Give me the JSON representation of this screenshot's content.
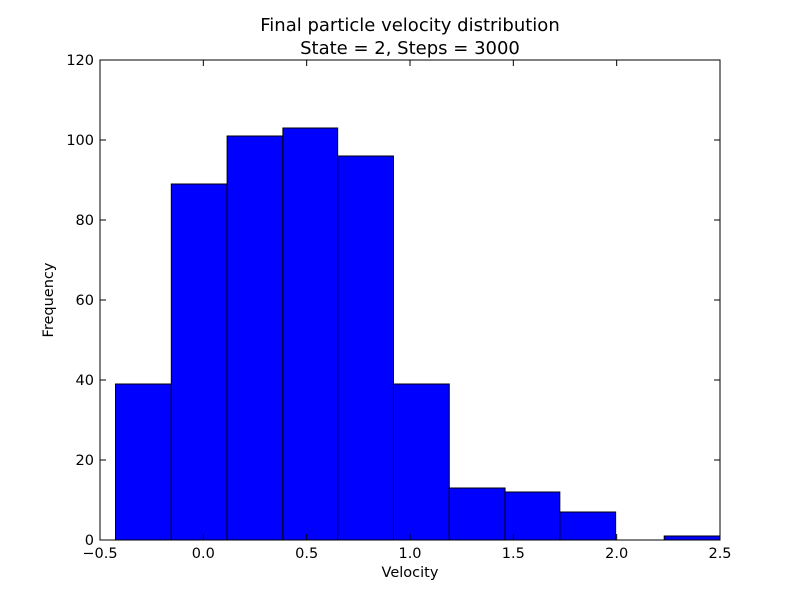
{
  "chart_data": {
    "type": "bar",
    "title": "Final particle velocity distribution",
    "subtitle": "State = 2, Steps = 3000",
    "xlabel": "Velocity",
    "ylabel": "Frequency",
    "xlim": [
      -0.5,
      2.5
    ],
    "ylim": [
      0,
      120
    ],
    "bins": [
      {
        "x0": -0.425,
        "x1": -0.155,
        "value": 39
      },
      {
        "x0": -0.155,
        "x1": 0.115,
        "value": 89
      },
      {
        "x0": 0.115,
        "x1": 0.385,
        "value": 101
      },
      {
        "x0": 0.385,
        "x1": 0.65,
        "value": 103
      },
      {
        "x0": 0.65,
        "x1": 0.92,
        "value": 96
      },
      {
        "x0": 0.92,
        "x1": 1.19,
        "value": 39
      },
      {
        "x0": 1.19,
        "x1": 1.46,
        "value": 13
      },
      {
        "x0": 1.46,
        "x1": 1.725,
        "value": 12
      },
      {
        "x0": 1.725,
        "x1": 1.995,
        "value": 7
      },
      {
        "x0": 1.995,
        "x1": 2.23,
        "value": 0
      },
      {
        "x0": 2.23,
        "x1": 2.5,
        "value": 1
      }
    ],
    "x_ticks": [
      {
        "value": -0.5,
        "label": "−0.5"
      },
      {
        "value": 0.0,
        "label": "0.0"
      },
      {
        "value": 0.5,
        "label": "0.5"
      },
      {
        "value": 1.0,
        "label": "1.0"
      },
      {
        "value": 1.5,
        "label": "1.5"
      },
      {
        "value": 2.0,
        "label": "2.0"
      },
      {
        "value": 2.5,
        "label": "2.5"
      }
    ],
    "y_ticks": [
      {
        "value": 0,
        "label": "0"
      },
      {
        "value": 20,
        "label": "20"
      },
      {
        "value": 40,
        "label": "40"
      },
      {
        "value": 60,
        "label": "60"
      },
      {
        "value": 80,
        "label": "80"
      },
      {
        "value": 100,
        "label": "100"
      },
      {
        "value": 120,
        "label": "120"
      }
    ],
    "grid": false,
    "bar_color": "#0000ff",
    "edge_color": "#000000"
  }
}
